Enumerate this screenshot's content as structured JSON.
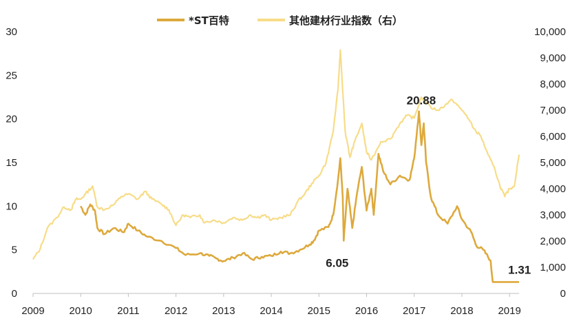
{
  "chart_data": {
    "type": "line",
    "title": "",
    "xlabel": "",
    "ylabel": "",
    "x_ticks": [
      "2009",
      "2010",
      "2011",
      "2012",
      "2013",
      "2014",
      "2015",
      "2016",
      "2017",
      "2018",
      "2019"
    ],
    "x_range": [
      2009.0,
      2019.2
    ],
    "y_left_ticks": [
      "0",
      "5",
      "10",
      "15",
      "20",
      "25",
      "30"
    ],
    "y_left_range": [
      0,
      30
    ],
    "y_right_ticks": [
      "0",
      "1,000",
      "2,000",
      "3,000",
      "4,000",
      "5,000",
      "6,000",
      "7,000",
      "8,000",
      "9,000",
      "10,000"
    ],
    "y_right_range": [
      0,
      10000
    ],
    "legend": {
      "placement": "top-center"
    },
    "colors": {
      "st_baite": "#DDA93C",
      "industry_index": "#F7DC87"
    },
    "series": [
      {
        "name": "*ST百特",
        "axis": "left",
        "points": [
          [
            2010.0,
            10.0
          ],
          [
            2010.1,
            9.0
          ],
          [
            2010.2,
            10.2
          ],
          [
            2010.3,
            9.5
          ],
          [
            2010.35,
            7.5
          ],
          [
            2010.5,
            6.8
          ],
          [
            2010.7,
            7.5
          ],
          [
            2010.9,
            7.0
          ],
          [
            2011.0,
            8.0
          ],
          [
            2011.2,
            7.2
          ],
          [
            2011.4,
            6.5
          ],
          [
            2011.7,
            6.0
          ],
          [
            2012.0,
            5.2
          ],
          [
            2012.2,
            4.4
          ],
          [
            2012.5,
            4.6
          ],
          [
            2012.7,
            4.3
          ],
          [
            2012.85,
            4.0
          ],
          [
            2013.0,
            3.7
          ],
          [
            2013.2,
            4.1
          ],
          [
            2013.4,
            4.6
          ],
          [
            2013.6,
            3.9
          ],
          [
            2013.8,
            4.2
          ],
          [
            2014.0,
            4.3
          ],
          [
            2014.2,
            4.8
          ],
          [
            2014.4,
            4.6
          ],
          [
            2014.6,
            5.0
          ],
          [
            2014.8,
            5.6
          ],
          [
            2014.9,
            6.1
          ],
          [
            2015.0,
            7.2
          ],
          [
            2015.2,
            7.6
          ],
          [
            2015.3,
            9.0
          ],
          [
            2015.4,
            13.0
          ],
          [
            2015.45,
            15.5
          ],
          [
            2015.5,
            11.0
          ],
          [
            2015.52,
            6.05
          ],
          [
            2015.6,
            12.0
          ],
          [
            2015.7,
            7.5
          ],
          [
            2015.8,
            11.5
          ],
          [
            2015.9,
            14.5
          ],
          [
            2016.0,
            9.5
          ],
          [
            2016.1,
            12.0
          ],
          [
            2016.15,
            9.0
          ],
          [
            2016.25,
            16.0
          ],
          [
            2016.35,
            14.0
          ],
          [
            2016.5,
            12.5
          ],
          [
            2016.7,
            13.5
          ],
          [
            2016.9,
            13.0
          ],
          [
            2017.0,
            15.5
          ],
          [
            2017.1,
            20.88
          ],
          [
            2017.15,
            17.0
          ],
          [
            2017.2,
            19.5
          ],
          [
            2017.25,
            15.0
          ],
          [
            2017.35,
            11.0
          ],
          [
            2017.5,
            9.0
          ],
          [
            2017.7,
            8.0
          ],
          [
            2017.9,
            10.0
          ],
          [
            2018.0,
            8.5
          ],
          [
            2018.2,
            7.0
          ],
          [
            2018.3,
            5.5
          ],
          [
            2018.45,
            5.0
          ],
          [
            2018.6,
            3.8
          ],
          [
            2018.65,
            1.31
          ],
          [
            2019.2,
            1.31
          ]
        ]
      },
      {
        "name": "其他建材行业指数（右）",
        "axis": "right",
        "points": [
          [
            2009.0,
            1300
          ],
          [
            2009.15,
            1700
          ],
          [
            2009.3,
            2500
          ],
          [
            2009.5,
            2900
          ],
          [
            2009.65,
            3300
          ],
          [
            2009.8,
            3200
          ],
          [
            2009.9,
            3600
          ],
          [
            2010.0,
            3600
          ],
          [
            2010.1,
            3800
          ],
          [
            2010.25,
            4100
          ],
          [
            2010.35,
            3300
          ],
          [
            2010.5,
            3200
          ],
          [
            2010.7,
            3400
          ],
          [
            2010.85,
            3700
          ],
          [
            2011.0,
            3800
          ],
          [
            2011.2,
            3600
          ],
          [
            2011.35,
            3900
          ],
          [
            2011.5,
            3600
          ],
          [
            2011.7,
            3400
          ],
          [
            2011.85,
            3200
          ],
          [
            2012.0,
            2600
          ],
          [
            2012.15,
            3000
          ],
          [
            2012.3,
            2900
          ],
          [
            2012.5,
            3000
          ],
          [
            2012.6,
            2700
          ],
          [
            2012.8,
            2800
          ],
          [
            2013.0,
            2700
          ],
          [
            2013.2,
            2900
          ],
          [
            2013.4,
            2800
          ],
          [
            2013.55,
            3000
          ],
          [
            2013.7,
            2900
          ],
          [
            2013.85,
            3000
          ],
          [
            2014.0,
            2800
          ],
          [
            2014.2,
            2900
          ],
          [
            2014.4,
            3000
          ],
          [
            2014.55,
            3500
          ],
          [
            2014.7,
            3800
          ],
          [
            2014.85,
            4200
          ],
          [
            2015.0,
            4500
          ],
          [
            2015.15,
            5000
          ],
          [
            2015.3,
            6200
          ],
          [
            2015.4,
            7800
          ],
          [
            2015.45,
            9300
          ],
          [
            2015.55,
            6200
          ],
          [
            2015.65,
            5200
          ],
          [
            2015.75,
            5800
          ],
          [
            2015.9,
            6500
          ],
          [
            2016.0,
            5400
          ],
          [
            2016.1,
            5100
          ],
          [
            2016.3,
            5800
          ],
          [
            2016.5,
            5900
          ],
          [
            2016.7,
            6500
          ],
          [
            2016.85,
            6800
          ],
          [
            2017.0,
            6700
          ],
          [
            2017.15,
            7500
          ],
          [
            2017.35,
            7100
          ],
          [
            2017.5,
            7000
          ],
          [
            2017.65,
            7200
          ],
          [
            2017.8,
            7400
          ],
          [
            2017.95,
            7100
          ],
          [
            2018.1,
            6800
          ],
          [
            2018.25,
            6300
          ],
          [
            2018.4,
            6000
          ],
          [
            2018.55,
            5300
          ],
          [
            2018.7,
            4700
          ],
          [
            2018.8,
            4100
          ],
          [
            2018.9,
            3700
          ],
          [
            2019.0,
            4000
          ],
          [
            2019.1,
            4100
          ],
          [
            2019.2,
            5300
          ]
        ]
      }
    ],
    "annotations": [
      {
        "text": "20.88",
        "x": 2017.1,
        "y": 20.88,
        "axis": "left"
      },
      {
        "text": "6.05",
        "x": 2015.52,
        "y": 6.05,
        "axis": "left"
      },
      {
        "text": "1.31",
        "x": 2019.0,
        "y": 1.31,
        "axis": "left"
      }
    ]
  }
}
